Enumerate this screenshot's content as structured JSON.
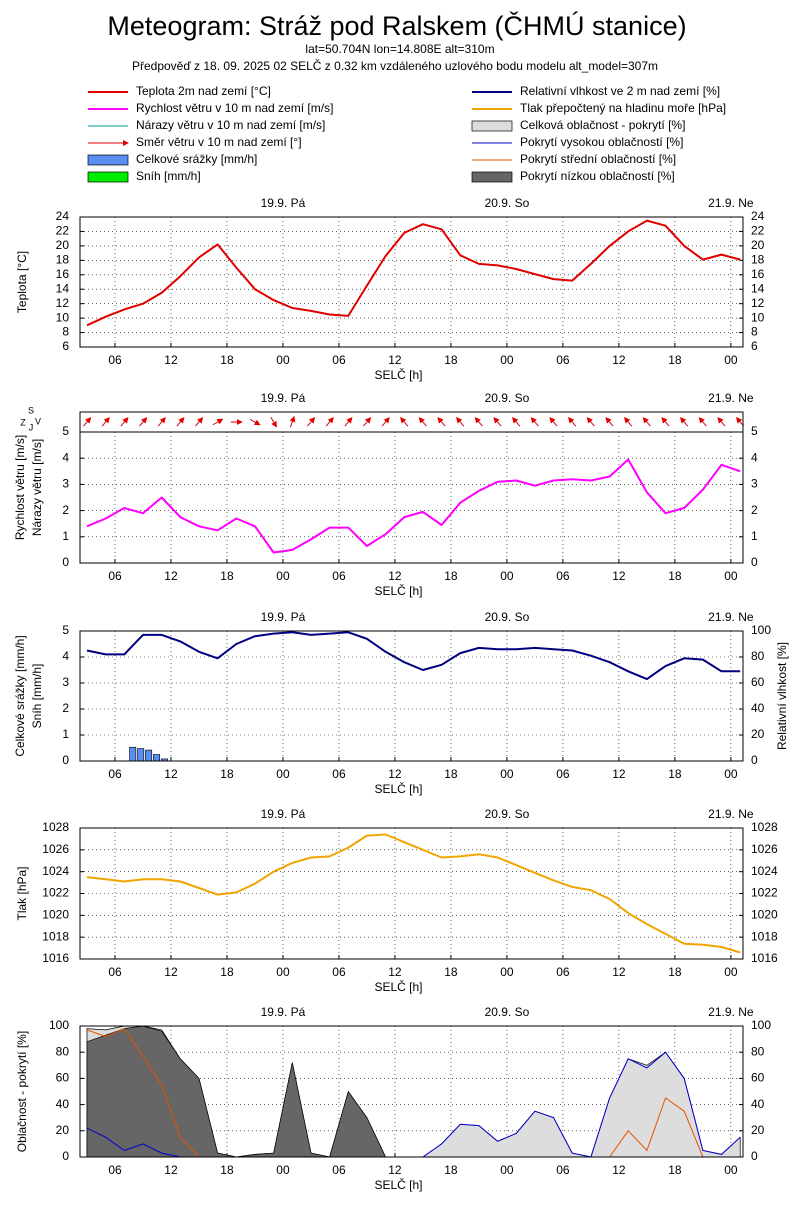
{
  "header": {
    "title": "Meteogram: Stráž pod Ralskem (ČHMÚ stanice)",
    "location": "lat=50.704N lon=14.808E alt=310m",
    "forecast": "Předpověď z 18. 09. 2025 02 SELČ z 0.32 km vzdáleného uzlového bodu modelu alt_model=307m"
  },
  "time_axis": {
    "xlim": [
      2.25,
      73.3
    ],
    "xticks": [
      {
        "value": 6,
        "label": "06"
      },
      12,
      18,
      {
        "value": 24,
        "label": "00"
      },
      {
        "value": 30,
        "label": "06"
      },
      {
        "value": 36,
        "label": "12"
      },
      {
        "value": 42,
        "label": "18"
      },
      {
        "value": 48,
        "label": "00"
      },
      {
        "value": 54,
        "label": "06"
      },
      {
        "value": 60,
        "label": "12"
      },
      {
        "value": 66,
        "label": "18"
      },
      {
        "value": 72,
        "label": "00"
      }
    ],
    "days": [
      {
        "value": 24,
        "label": "19.9. Pá"
      },
      {
        "value": 48,
        "label": "20.9. So"
      },
      {
        "value": 72,
        "label": "21.9. Ne"
      }
    ],
    "xlabel": "SELČ [h]",
    "grid": true
  },
  "chart_data": [
    {
      "type": "line",
      "ylabel": [
        "Teplota [°C]"
      ],
      "ylim": [
        6,
        24
      ],
      "yticks": [
        6,
        8,
        10,
        12,
        14,
        16,
        18,
        20,
        22,
        24
      ],
      "x": [
        3,
        5,
        7,
        9,
        11,
        13,
        15,
        17,
        19,
        21,
        23,
        25,
        27,
        29,
        31,
        33,
        35,
        37,
        39,
        41,
        43,
        45,
        47,
        49,
        51,
        53,
        55,
        57,
        59,
        61,
        63,
        65,
        67,
        69,
        71,
        73
      ],
      "series": [
        {
          "name": "Teplota 2m nad zemí [°C]",
          "color": "#e00000",
          "values": [
            9.0,
            10.2,
            11.2,
            12.0,
            13.5,
            15.8,
            18.4,
            20.2,
            17.0,
            14.0,
            12.5,
            11.4,
            11.0,
            10.5,
            10.3,
            14.5,
            18.6,
            21.8,
            23.0,
            22.3,
            18.7,
            17.5,
            17.3,
            16.8,
            16.1,
            15.4,
            15.2,
            17.5,
            20.0,
            22.0,
            23.5,
            22.8,
            20.0,
            18.1,
            18.8,
            18.1
          ]
        }
      ]
    },
    {
      "type": "wind",
      "ylabel": [
        "Rychlost větru [m/s]",
        "Nárazy větru [m/s]"
      ],
      "compass": [
        "S",
        "V",
        "J",
        "Z"
      ],
      "ylim": [
        0,
        5
      ],
      "yticks": [
        0,
        1,
        2,
        3,
        4,
        5
      ],
      "x": [
        3,
        5,
        7,
        9,
        11,
        13,
        15,
        17,
        19,
        21,
        23,
        25,
        27,
        29,
        31,
        33,
        35,
        37,
        39,
        41,
        43,
        45,
        47,
        49,
        51,
        53,
        55,
        57,
        59,
        61,
        63,
        65,
        67,
        69,
        71,
        73
      ],
      "series": [
        {
          "name": "Rychlost větru v 10 m nad zemí [m/s]",
          "color": "#ff00ff",
          "values": [
            1.4,
            1.7,
            2.1,
            1.9,
            2.5,
            1.75,
            1.4,
            1.25,
            1.7,
            1.4,
            0.4,
            0.5,
            0.9,
            1.35,
            1.35,
            0.65,
            1.1,
            1.75,
            1.95,
            1.45,
            2.3,
            2.75,
            3.1,
            3.15,
            2.95,
            3.15,
            3.2,
            3.15,
            3.3,
            3.95,
            2.7,
            1.9,
            2.1,
            2.8,
            3.75,
            3.5
          ]
        }
      ],
      "direction": {
        "name": "Směr větru v 10 m nad zemí [°]",
        "color": "#e00000",
        "values": [
          220,
          220,
          220,
          220,
          220,
          220,
          220,
          240,
          270,
          300,
          330,
          200,
          220,
          220,
          220,
          220,
          220,
          140,
          140,
          140,
          140,
          140,
          140,
          140,
          140,
          140,
          140,
          140,
          140,
          140,
          140,
          140,
          140,
          140,
          140,
          140
        ]
      },
      "legend_only": [
        {
          "name": "Nárazy větru v 10 m nad zemí [m/s]",
          "color": "#009999"
        }
      ]
    },
    {
      "type": "bar_line",
      "ylabel": [
        "Celkové srážky [mm/h]",
        "Sníh [mm/h]"
      ],
      "y2label": "Relativní vlhkost [%]",
      "ylim": [
        0,
        5
      ],
      "yticks": [
        0,
        1,
        2,
        3,
        4,
        5
      ],
      "y2lim": [
        0,
        100
      ],
      "y2ticks": [
        0,
        20,
        40,
        60,
        80,
        100
      ],
      "bars": {
        "name": "Celkové srážky [mm/h]",
        "color": "#5a8ef0",
        "x": [
          7.9,
          8.75,
          9.6,
          10.45,
          11.3
        ],
        "values": [
          0.53,
          0.48,
          0.42,
          0.25,
          0.08
        ]
      },
      "legend_only": [
        {
          "name": "Sníh [mm/h]",
          "color": "#00ee00"
        }
      ],
      "x": [
        3,
        5,
        7,
        9,
        11,
        13,
        15,
        17,
        19,
        21,
        23,
        25,
        27,
        29,
        31,
        33,
        35,
        37,
        39,
        41,
        43,
        45,
        47,
        49,
        51,
        53,
        55,
        57,
        59,
        61,
        63,
        65,
        67,
        69,
        71,
        73
      ],
      "series": [
        {
          "name": "Relativní vlhkost ve 2 m nad zemí [%]",
          "color": "#000080",
          "axis": "y2",
          "values": [
            85,
            82,
            82,
            97,
            97,
            92,
            84,
            79,
            90,
            96,
            98,
            99,
            97,
            98,
            99,
            94,
            84,
            76,
            70,
            74,
            83,
            87,
            86,
            86,
            87,
            86,
            85,
            81,
            76,
            69,
            63,
            73,
            79,
            78,
            69,
            69
          ]
        }
      ]
    },
    {
      "type": "line",
      "ylabel": [
        "Tlak [hPa]"
      ],
      "ylim": [
        1016,
        1028
      ],
      "yticks": [
        1016,
        1018,
        1020,
        1022,
        1024,
        1026,
        1028
      ],
      "x": [
        3,
        5,
        7,
        9,
        11,
        13,
        15,
        17,
        19,
        21,
        23,
        25,
        27,
        29,
        31,
        33,
        35,
        37,
        39,
        41,
        43,
        45,
        47,
        49,
        51,
        53,
        55,
        57,
        59,
        61,
        63,
        65,
        67,
        69,
        71,
        73
      ],
      "series": [
        {
          "name": "Tlak přepočtený na hladinu moře [hPa]",
          "color": "#f0a500",
          "values": [
            1023.5,
            1023.3,
            1023.1,
            1023.3,
            1023.3,
            1023.1,
            1022.5,
            1021.9,
            1022.1,
            1022.9,
            1024.0,
            1024.8,
            1025.3,
            1025.4,
            1026.2,
            1027.3,
            1027.4,
            1026.7,
            1026.0,
            1025.3,
            1025.4,
            1025.6,
            1025.3,
            1024.6,
            1023.9,
            1023.2,
            1022.6,
            1022.3,
            1021.5,
            1020.2,
            1019.2,
            1018.3,
            1017.4,
            1017.3,
            1017.1,
            1016.6
          ]
        }
      ]
    },
    {
      "type": "cloud",
      "ylabel": [
        "Oblačnost - pokrytí [%]"
      ],
      "ylim": [
        0,
        100
      ],
      "yticks": [
        0,
        20,
        40,
        60,
        80,
        100
      ],
      "x": [
        3,
        5,
        7,
        9,
        11,
        13,
        15,
        17,
        19,
        21,
        23,
        25,
        27,
        29,
        31,
        33,
        35,
        37,
        39,
        41,
        43,
        45,
        47,
        49,
        51,
        53,
        55,
        57,
        59,
        61,
        63,
        65,
        67,
        69,
        71,
        73
      ],
      "series": [
        {
          "name": "Celková oblačnost - pokrytí [%]",
          "color": "#dddddd",
          "style": "area",
          "values": [
            98,
            97,
            100,
            100,
            97,
            75,
            60,
            3,
            0,
            2,
            3,
            72,
            3,
            0,
            50,
            30,
            0,
            0,
            0,
            10,
            25,
            24,
            12,
            18,
            35,
            30,
            3,
            0,
            45,
            75,
            70,
            80,
            60,
            5,
            2,
            15
          ]
        },
        {
          "name": "Pokrytí nízkou oblačností [%]",
          "color": "#666666",
          "style": "area",
          "values": [
            88,
            93,
            98,
            100,
            96,
            75,
            60,
            3,
            0,
            2,
            3,
            72,
            3,
            0,
            50,
            30,
            0,
            0,
            0,
            0,
            0,
            0,
            0,
            0,
            0,
            0,
            0,
            0,
            0,
            0,
            0,
            0,
            0,
            0,
            0,
            0
          ]
        },
        {
          "name": "Pokrytí vysokou oblačností [%]",
          "color": "#0000cc",
          "style": "line",
          "values": [
            22,
            15,
            5,
            10,
            3,
            0,
            0,
            0,
            0,
            0,
            0,
            0,
            0,
            0,
            0,
            0,
            0,
            0,
            0,
            10,
            25,
            24,
            12,
            18,
            35,
            30,
            3,
            0,
            45,
            75,
            68,
            80,
            60,
            5,
            2,
            15
          ]
        },
        {
          "name": "Pokrytí střední oblačností [%]",
          "color": "#e85000",
          "style": "line",
          "values": [
            97,
            92,
            98,
            77,
            55,
            15,
            0,
            0,
            0,
            0,
            0,
            0,
            0,
            0,
            0,
            0,
            0,
            0,
            0,
            0,
            0,
            0,
            0,
            0,
            0,
            0,
            0,
            0,
            0,
            20,
            5,
            45,
            35,
            0,
            0,
            0
          ]
        }
      ]
    }
  ]
}
